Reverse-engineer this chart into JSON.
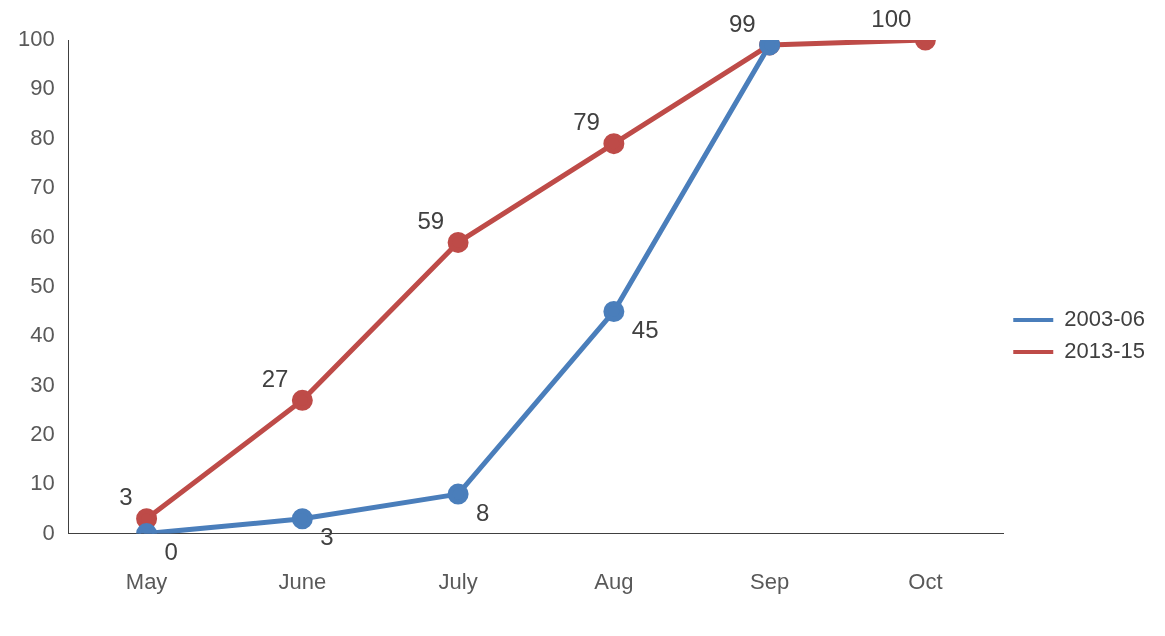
{
  "chart_data": {
    "type": "line",
    "categories": [
      "May",
      "June",
      "July",
      "Aug",
      "Sep",
      "Oct"
    ],
    "series": [
      {
        "name": "2003-06",
        "color": "#4a7ebb",
        "values": [
          0,
          3,
          8,
          45,
          99,
          null
        ],
        "value_labels": [
          "0",
          "3",
          "8",
          "45",
          null,
          null
        ]
      },
      {
        "name": "2013-15",
        "color": "#be4b48",
        "values": [
          3,
          27,
          59,
          79,
          99,
          100
        ],
        "value_labels": [
          "3",
          "27",
          "59",
          "79",
          "99",
          "100"
        ]
      }
    ],
    "ylim": [
      0,
      100
    ],
    "yticks": [
      0,
      10,
      20,
      30,
      40,
      50,
      60,
      70,
      80,
      90,
      100
    ],
    "grid": false,
    "legend": "right",
    "marker": "circle",
    "line_style": "solid"
  }
}
